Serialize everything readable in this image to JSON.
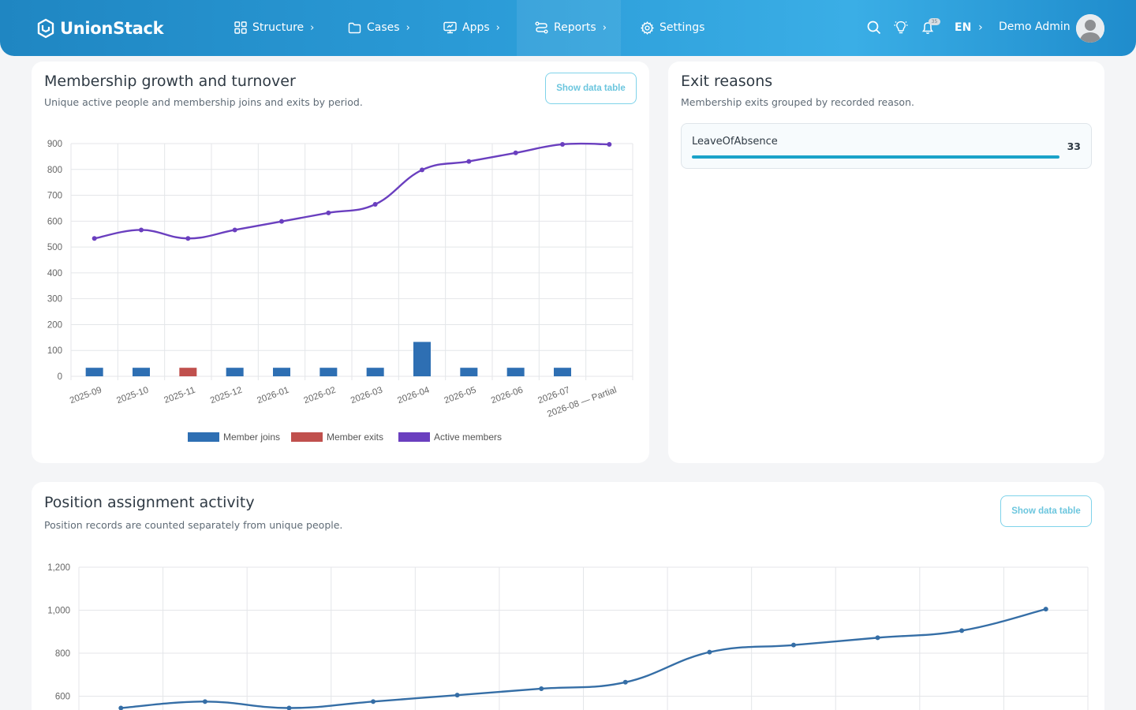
{
  "brand": {
    "name": "UnionStack"
  },
  "nav": {
    "items": [
      {
        "label": "Structure",
        "icon": "grid-icon",
        "has_chevron": true
      },
      {
        "label": "Cases",
        "icon": "folder-icon",
        "has_chevron": true
      },
      {
        "label": "Apps",
        "icon": "monitor-icon",
        "has_chevron": true
      },
      {
        "label": "Reports",
        "icon": "route-icon",
        "has_chevron": true,
        "active": true
      },
      {
        "label": "Settings",
        "icon": "gear-icon",
        "has_chevron": false
      }
    ],
    "language": "EN",
    "user_name": "Demo Admin",
    "notification_badge": "35"
  },
  "membership_card": {
    "title": "Membership growth and turnover",
    "subtitle": "Unique active people and membership joins and exits by period.",
    "button": "Show data table"
  },
  "exit_card": {
    "title": "Exit reasons",
    "subtitle": "Membership exits grouped by recorded reason.",
    "reasons": [
      {
        "label": "LeaveOfAbsence",
        "count": "33",
        "share": 1.0
      }
    ]
  },
  "position_card": {
    "title": "Position assignment activity",
    "subtitle": "Position records are counted separately from unique people.",
    "button": "Show data table"
  },
  "colors": {
    "joins": "#2e6fb3",
    "exits": "#c0504d",
    "active": "#6a3fbf",
    "positions": "#356ea6"
  },
  "chart_data": [
    {
      "type": "bar",
      "categories": [
        "2025-09",
        "2025-10",
        "2025-11",
        "2025-12",
        "2026-01",
        "2026-02",
        "2026-03",
        "2026-04",
        "2026-05",
        "2026-06",
        "2026-07",
        "2026-08 — Partial"
      ],
      "series": [
        {
          "name": "Member joins",
          "type": "bar",
          "color": "#2e6fb3",
          "values": [
            33,
            33,
            0,
            33,
            33,
            33,
            33,
            133,
            33,
            33,
            33,
            0
          ]
        },
        {
          "name": "Member exits",
          "type": "bar",
          "color": "#c0504d",
          "values": [
            0,
            0,
            33,
            0,
            0,
            0,
            0,
            0,
            0,
            0,
            0,
            0
          ]
        },
        {
          "name": "Active members",
          "type": "line",
          "color": "#6a3fbf",
          "values": [
            533,
            566,
            533,
            566,
            599,
            632,
            665,
            798,
            831,
            864,
            897,
            897
          ]
        }
      ],
      "ylim": [
        0,
        900
      ],
      "yticks": [
        "0",
        "100",
        "200",
        "300",
        "400",
        "500",
        "600",
        "700",
        "800",
        "900"
      ],
      "grid": true,
      "legend": "bottom"
    },
    {
      "type": "line",
      "series": [
        {
          "color": "#356ea6",
          "values": [
            545,
            575,
            545,
            575,
            605,
            635,
            665,
            805,
            838,
            872,
            905,
            1005
          ]
        }
      ],
      "ylim": [
        600,
        1200
      ],
      "yticks": [
        "600",
        "800",
        "1,000",
        "1,200"
      ],
      "grid": true
    }
  ]
}
